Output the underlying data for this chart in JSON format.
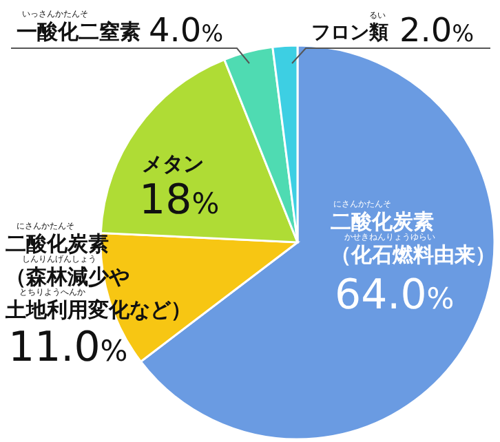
{
  "chart_data": {
    "type": "pie",
    "categories": [
      "二酸化炭素（化石燃料由来）",
      "二酸化炭素（森林減少や土地利用変化など）",
      "メタン",
      "一酸化二窒素",
      "フロン類"
    ],
    "values": [
      64.0,
      11.0,
      18,
      4.0,
      2.0
    ],
    "colors": [
      "#6a9be2",
      "#f7c613",
      "#afdc35",
      "#4fdbb2",
      "#3dcfe3"
    ],
    "data_labels": true,
    "value_labels": [
      "64.0%",
      "11.0%",
      "18%",
      "4.0%",
      "2.0%"
    ],
    "annotations": [
      "にさんかたんそ",
      "かせきねんりょうゆらい",
      "にさんかたんそ",
      "しんりんげんしょう",
      "とちりようへんか",
      "いっさんかたんそ",
      "るい"
    ]
  }
}
